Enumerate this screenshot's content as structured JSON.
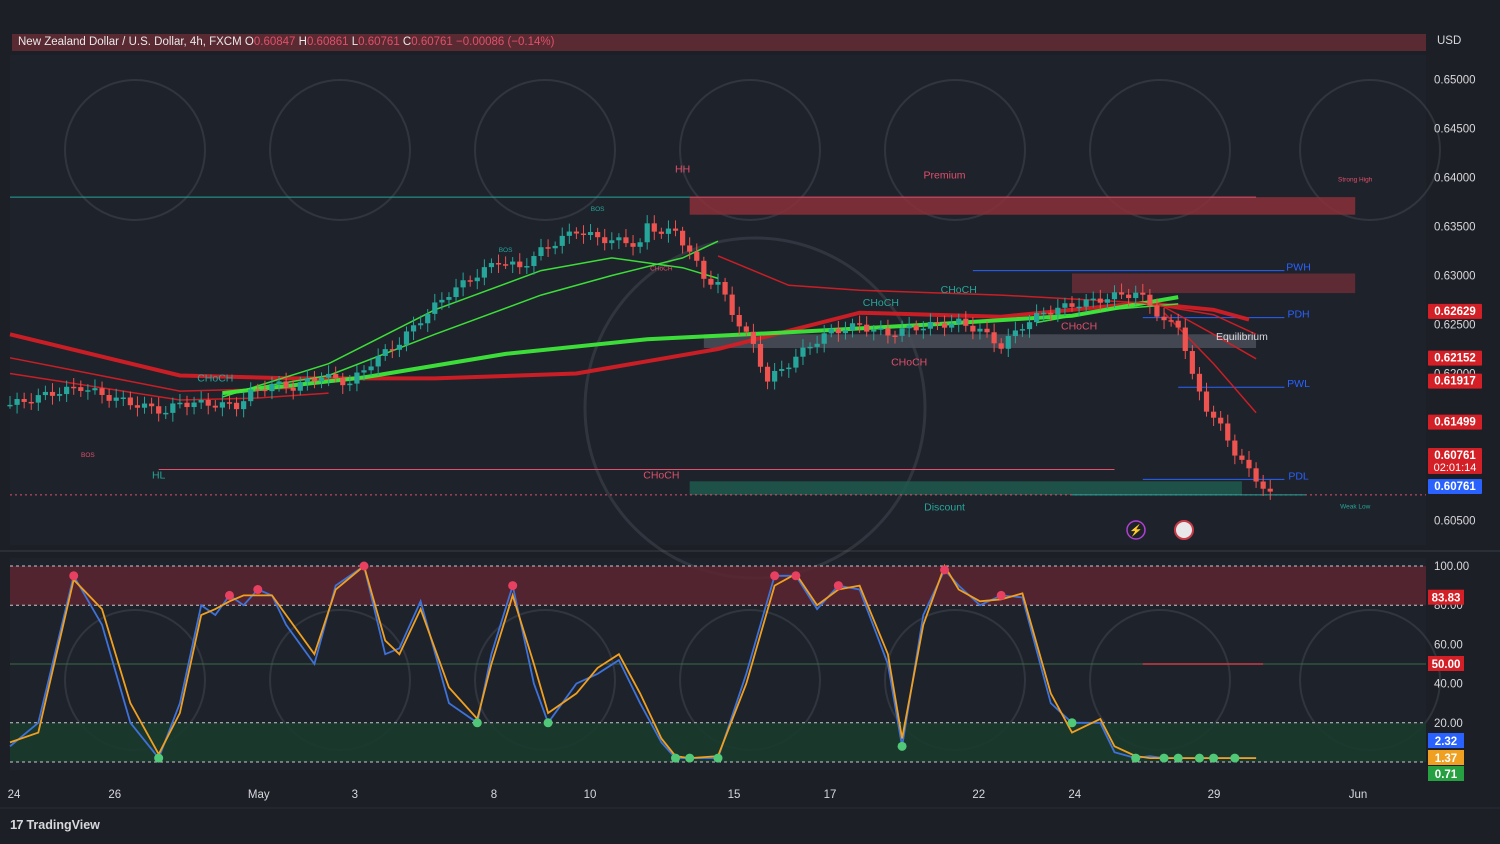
{
  "header": {
    "symbol": "New Zealand Dollar / U.S. Dollar, 4h, FXCM",
    "o_label": "O",
    "o_value": "0.60847",
    "h_label": "H",
    "h_value": "0.60861",
    "l_label": "L",
    "l_value": "0.60761",
    "c_label": "C",
    "c_value": "0.60761",
    "change": "−0.00086 (−0.14%)"
  },
  "currency": "USD",
  "brand": "TradingView",
  "colors": {
    "background": "#1c1f26",
    "up": "#26a69a",
    "down": "#ef5350",
    "ema_green": "#3ee83a",
    "ema_red": "#d31f25",
    "stoch_k": "#3f72d8",
    "stoch_d": "#f0a020"
  },
  "chart_data": [
    {
      "type": "candlestick",
      "name": "main",
      "ylim": [
        0.6025,
        0.6525
      ],
      "y_ticks": [
        "0.65000",
        "0.64500",
        "0.64000",
        "0.63500",
        "0.63000",
        "0.62500",
        "0.62000",
        "0.60500"
      ],
      "x_ticks": [
        "24",
        "26",
        "May",
        "3",
        "8",
        "10",
        "15",
        "17",
        "22",
        "24",
        "29",
        "Jun"
      ],
      "price_badges": [
        {
          "label": "0.62629",
          "value": 0.62629,
          "color": "#d31f25"
        },
        {
          "label": "0.62152",
          "value": 0.62152,
          "color": "#d31f25"
        },
        {
          "label": "0.61917",
          "value": 0.61917,
          "color": "#d31f25"
        },
        {
          "label": "0.61499",
          "value": 0.61499,
          "color": "#d31f25"
        },
        {
          "label": "0.60761",
          "value": 0.60761,
          "color": "#d31f25",
          "sub": "02:01:14"
        },
        {
          "label": "0.60761",
          "value": 0.60761,
          "color": "#2962ff"
        }
      ],
      "close_path": [
        [
          0,
          0.6168
        ],
        [
          6,
          0.618
        ],
        [
          10,
          0.6186
        ],
        [
          14,
          0.6176
        ],
        [
          18,
          0.6168
        ],
        [
          22,
          0.6161
        ],
        [
          24,
          0.617
        ],
        [
          28,
          0.6169
        ],
        [
          32,
          0.6167
        ],
        [
          34,
          0.618
        ],
        [
          37,
          0.6189
        ],
        [
          40,
          0.6186
        ],
        [
          44,
          0.6198
        ],
        [
          48,
          0.619
        ],
        [
          51,
          0.6211
        ],
        [
          55,
          0.6232
        ],
        [
          58,
          0.6255
        ],
        [
          62,
          0.6282
        ],
        [
          66,
          0.6301
        ],
        [
          69,
          0.6315
        ],
        [
          72,
          0.6308
        ],
        [
          75,
          0.6325
        ],
        [
          78,
          0.6338
        ],
        [
          80,
          0.6346
        ],
        [
          83,
          0.6338
        ],
        [
          86,
          0.6335
        ],
        [
          89,
          0.6332
        ],
        [
          90,
          0.635
        ],
        [
          92,
          0.6345
        ],
        [
          94,
          0.6344
        ],
        [
          96,
          0.6325
        ],
        [
          98,
          0.6297
        ],
        [
          100,
          0.6292
        ],
        [
          102,
          0.6262
        ],
        [
          103,
          0.6251
        ],
        [
          105,
          0.6228
        ],
        [
          107,
          0.6193
        ],
        [
          110,
          0.621
        ],
        [
          113,
          0.6229
        ],
        [
          116,
          0.6243
        ],
        [
          120,
          0.6249
        ],
        [
          124,
          0.624
        ],
        [
          127,
          0.6246
        ],
        [
          131,
          0.625
        ],
        [
          134,
          0.6252
        ],
        [
          137,
          0.6244
        ],
        [
          140,
          0.6228
        ],
        [
          143,
          0.6249
        ],
        [
          146,
          0.6262
        ],
        [
          150,
          0.627
        ],
        [
          153,
          0.6274
        ],
        [
          156,
          0.6279
        ],
        [
          159,
          0.6282
        ],
        [
          161,
          0.6271
        ],
        [
          163,
          0.6252
        ],
        [
          165,
          0.625
        ],
        [
          166,
          0.6225
        ],
        [
          167,
          0.6196
        ],
        [
          169,
          0.6165
        ],
        [
          171,
          0.6145
        ],
        [
          173,
          0.612
        ],
        [
          175,
          0.61
        ],
        [
          177,
          0.6085
        ],
        [
          178,
          0.60761
        ]
      ],
      "emas": [
        {
          "name": "ema-slow",
          "color": "#d31f25",
          "points": [
            [
              0,
              0.624
            ],
            [
              24,
              0.6198
            ],
            [
              40,
              0.6195
            ],
            [
              60,
              0.6195
            ],
            [
              80,
              0.62
            ],
            [
              100,
              0.6225
            ],
            [
              120,
              0.6262
            ],
            [
              140,
              0.6258
            ],
            [
              160,
              0.6272
            ],
            [
              170,
              0.6265
            ],
            [
              175,
              0.6255
            ]
          ]
        },
        {
          "name": "ema-slow-2",
          "color": "#d31f25",
          "points": [
            [
              0,
              0.6216
            ],
            [
              24,
              0.6182
            ],
            [
              40,
              0.6185
            ]
          ]
        },
        {
          "name": "ema-slow-3",
          "color": "#d31f25",
          "points": [
            [
              0,
              0.62
            ],
            [
              24,
              0.6173
            ],
            [
              35,
              0.6175
            ],
            [
              45,
              0.618
            ]
          ]
        },
        {
          "name": "ema-mid",
          "color": "#3ee83a",
          "points": [
            [
              30,
              0.618
            ],
            [
              50,
              0.6196
            ],
            [
              70,
              0.622
            ],
            [
              90,
              0.6235
            ],
            [
              110,
              0.6242
            ],
            [
              130,
              0.625
            ],
            [
              150,
              0.6259
            ],
            [
              165,
              0.6278
            ]
          ]
        },
        {
          "name": "ema-fast",
          "color": "#3ee83a",
          "points": [
            [
              30,
              0.6176
            ],
            [
              45,
              0.621
            ],
            [
              60,
              0.6265
            ],
            [
              75,
              0.6305
            ],
            [
              85,
              0.6318
            ],
            [
              95,
              0.6308
            ],
            [
              100,
              0.6297
            ]
          ]
        },
        {
          "name": "ema-fast-2",
          "color": "#3ee83a",
          "points": [
            [
              30,
              0.618
            ],
            [
              45,
              0.6198
            ],
            [
              60,
              0.624
            ],
            [
              75,
              0.628
            ],
            [
              85,
              0.63
            ],
            [
              95,
              0.6318
            ],
            [
              100,
              0.6335
            ]
          ]
        },
        {
          "name": "ema-short",
          "color": "#3ee83a",
          "points": [
            [
              145,
              0.6252
            ],
            [
              155,
              0.6265
            ],
            [
              165,
              0.6271
            ]
          ]
        },
        {
          "name": "ema-down-1",
          "color": "#d31f25",
          "points": [
            [
              100,
              0.632
            ],
            [
              110,
              0.629
            ],
            [
              120,
              0.6285
            ],
            [
              140,
              0.628
            ],
            [
              160,
              0.6272
            ],
            [
              170,
              0.626
            ],
            [
              176,
              0.624
            ]
          ]
        },
        {
          "name": "ema-down-2",
          "color": "#d31f25",
          "points": [
            [
              163,
              0.6268
            ],
            [
              170,
              0.624
            ],
            [
              176,
              0.6215
            ]
          ]
        },
        {
          "name": "ema-down-3",
          "color": "#d31f25",
          "points": [
            [
              163,
              0.6262
            ],
            [
              170,
              0.621
            ],
            [
              176,
              0.616
            ]
          ]
        }
      ],
      "zones": [
        {
          "name": "premium-zone",
          "from": 0.638,
          "to": 0.6362,
          "x0": 96,
          "x1": 190,
          "color": "#8a2f38"
        },
        {
          "name": "supply-zone",
          "from": 0.6302,
          "to": 0.6282,
          "x0": 150,
          "x1": 190,
          "color": "#6a2c36"
        },
        {
          "name": "equilibrium-zone",
          "from": 0.624,
          "to": 0.6226,
          "x0": 98,
          "x1": 176,
          "color": "#4a4e58"
        },
        {
          "name": "discount-zone",
          "from": 0.609,
          "to": 0.6076,
          "x0": 96,
          "x1": 174,
          "color": "#1f5a4e"
        }
      ],
      "labels": [
        {
          "text": "HH",
          "x": 95,
          "y": 0.6405,
          "color": "#e0506a"
        },
        {
          "text": "HL",
          "x": 21,
          "y": 0.6093,
          "color": "#26a69a"
        },
        {
          "text": "CHoCH",
          "x": 92,
          "y": 0.6093,
          "color": "#e0506a"
        },
        {
          "text": "Premium",
          "x": 132,
          "y": 0.6399,
          "color": "#e0506a"
        },
        {
          "text": "Discount",
          "x": 132,
          "y": 0.606,
          "color": "#26a69a"
        },
        {
          "text": "Equilibrium",
          "x": 174,
          "y": 0.6234,
          "color": "#d8d8dc"
        },
        {
          "text": "PWH",
          "x": 182,
          "y": 0.6305,
          "color": "#2962ff"
        },
        {
          "text": "PDH",
          "x": 182,
          "y": 0.6257,
          "color": "#2962ff"
        },
        {
          "text": "PWL",
          "x": 182,
          "y": 0.6186,
          "color": "#2962ff"
        },
        {
          "text": "PDL",
          "x": 182,
          "y": 0.6092,
          "color": "#2962ff"
        },
        {
          "text": "Strong High",
          "x": 190,
          "y": 0.6396,
          "color": "#e0506a"
        },
        {
          "text": "Weak Low",
          "x": 190,
          "y": 0.6062,
          "color": "#26a69a"
        },
        {
          "text": "CHoCH",
          "x": 29,
          "y": 0.6192,
          "color": "#26a69a"
        },
        {
          "text": "BOS",
          "x": 11,
          "y": 0.6115,
          "color": "#e0506a"
        },
        {
          "text": "BOS",
          "x": 70,
          "y": 0.6324,
          "color": "#26a69a"
        },
        {
          "text": "BOS",
          "x": 83,
          "y": 0.6366,
          "color": "#26a69a"
        },
        {
          "text": "CHoCH",
          "x": 92,
          "y": 0.6305,
          "color": "#e0506a"
        },
        {
          "text": "CHoCH",
          "x": 123,
          "y": 0.6269,
          "color": "#26a69a"
        },
        {
          "text": "CHoCH",
          "x": 134,
          "y": 0.6282,
          "color": "#26a69a"
        },
        {
          "text": "CHoCH",
          "x": 127,
          "y": 0.6208,
          "color": "#e0506a"
        },
        {
          "text": "CHoCH",
          "x": 151,
          "y": 0.6245,
          "color": "#e0506a"
        }
      ]
    },
    {
      "type": "line",
      "name": "stochastic",
      "ylim": [
        0,
        100
      ],
      "y_ticks": [
        "100.00",
        "80.00",
        "60.00",
        "40.00",
        "20.00"
      ],
      "badges": [
        {
          "label": "83.83",
          "value": 83.83,
          "color": "#d31f25"
        },
        {
          "label": "50.00",
          "value": 50.0,
          "color": "#d31f25"
        },
        {
          "label": "2.32",
          "value": 2.32,
          "color": "#2962ff"
        },
        {
          "label": "1.37",
          "value": 1.37,
          "color": "#f0a020"
        },
        {
          "label": "0.71",
          "value": 0.71,
          "color": "#26a040"
        }
      ],
      "x": [
        0,
        4,
        9,
        13,
        17,
        21,
        24,
        27,
        29,
        31,
        33,
        35,
        37,
        39,
        43,
        46,
        50,
        53,
        55,
        58,
        62,
        66,
        68,
        71,
        74,
        76,
        80,
        83,
        86,
        89,
        92,
        94,
        96,
        100,
        104,
        108,
        111,
        114,
        117,
        120,
        124,
        126,
        129,
        132,
        134,
        137,
        140,
        143,
        147,
        150,
        154,
        156,
        159,
        161,
        163,
        165,
        168,
        170,
        173,
        176
      ],
      "series": [
        {
          "name": "K",
          "color": "#3f72d8",
          "values": [
            8,
            20,
            95,
            70,
            20,
            2,
            30,
            80,
            75,
            85,
            80,
            88,
            85,
            70,
            50,
            90,
            100,
            55,
            58,
            82,
            30,
            20,
            55,
            90,
            40,
            20,
            40,
            45,
            52,
            30,
            10,
            2,
            2,
            2,
            45,
            95,
            95,
            78,
            90,
            88,
            50,
            8,
            75,
            98,
            90,
            80,
            85,
            84,
            30,
            20,
            20,
            5,
            2,
            3,
            2,
            2,
            2,
            2,
            2,
            2
          ]
        },
        {
          "name": "D",
          "color": "#f0a020",
          "values": [
            10,
            15,
            93,
            78,
            30,
            4,
            25,
            75,
            78,
            82,
            85,
            85,
            85,
            75,
            55,
            88,
            100,
            62,
            55,
            78,
            38,
            22,
            50,
            85,
            50,
            25,
            35,
            48,
            55,
            35,
            12,
            3,
            2,
            3,
            40,
            90,
            96,
            80,
            88,
            90,
            55,
            12,
            70,
            100,
            88,
            82,
            83,
            86,
            35,
            15,
            22,
            8,
            3,
            2,
            2,
            2,
            2,
            2,
            2,
            2
          ]
        }
      ]
    }
  ]
}
